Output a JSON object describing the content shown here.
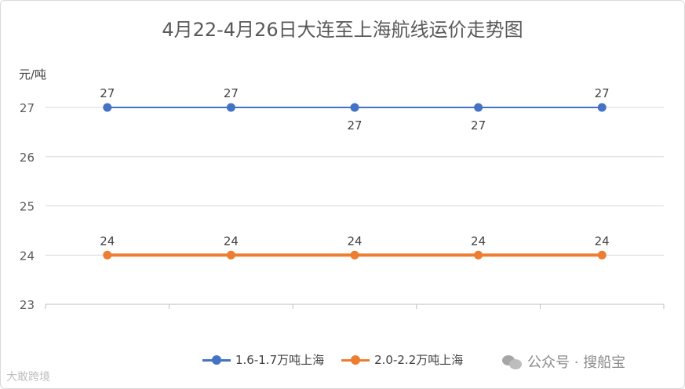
{
  "chart_data": {
    "type": "line",
    "title": "4月22-4月26日大连至上海航线运价走势图",
    "ylabel": "元/吨",
    "ylim": [
      23,
      27
    ],
    "yticks": [
      "23",
      "24",
      "25",
      "26",
      "27"
    ],
    "categories": [
      "",
      "",
      "",
      "",
      ""
    ],
    "grid": true,
    "legend": "bottom",
    "series": [
      {
        "name": "1.6-1.7万吨上海",
        "color": "#4472c4",
        "values": [
          27,
          27,
          27,
          27,
          27
        ],
        "label_pos": [
          "above",
          "above",
          "below",
          "below",
          "above"
        ]
      },
      {
        "name": "2.0-2.2万吨上海",
        "color": "#ed7d31",
        "values": [
          24,
          24,
          24,
          24,
          24
        ],
        "label_pos": [
          "above",
          "above",
          "above",
          "above",
          "above"
        ]
      }
    ]
  },
  "watermark": {
    "right_text": "公众号 · 搜船宝",
    "left_text": "大敢跨境"
  }
}
